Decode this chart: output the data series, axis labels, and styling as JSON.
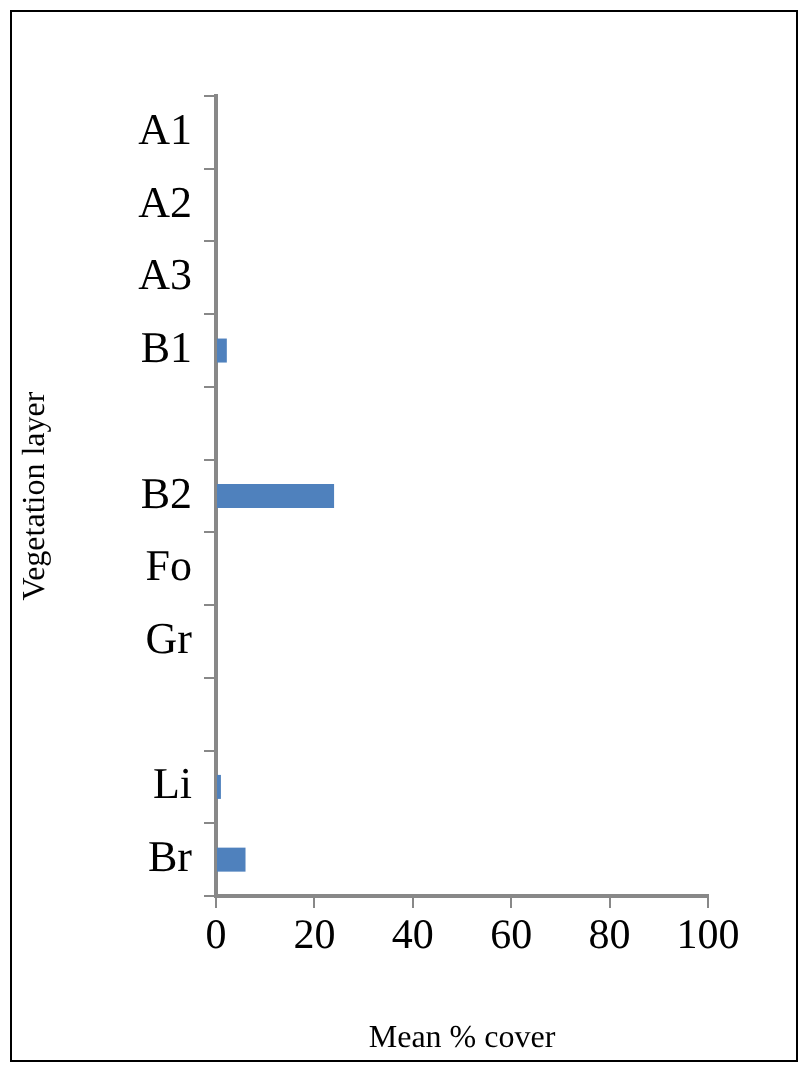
{
  "chart_data": {
    "type": "bar",
    "orientation": "horizontal",
    "xlabel": "Mean % cover",
    "ylabel": "Vegetation layer",
    "categories": [
      "A1",
      "A2",
      "A3",
      "B1",
      null,
      "B2",
      "Fo",
      "Gr",
      null,
      "Li",
      "Br"
    ],
    "values": [
      0,
      0,
      0,
      2.2,
      null,
      24,
      0,
      0,
      null,
      1,
      6
    ],
    "color": "#4f81bd",
    "xlim": [
      0,
      100
    ],
    "xticks": [
      0,
      20,
      40,
      60,
      80,
      100
    ],
    "grid": false,
    "legend": false
  }
}
